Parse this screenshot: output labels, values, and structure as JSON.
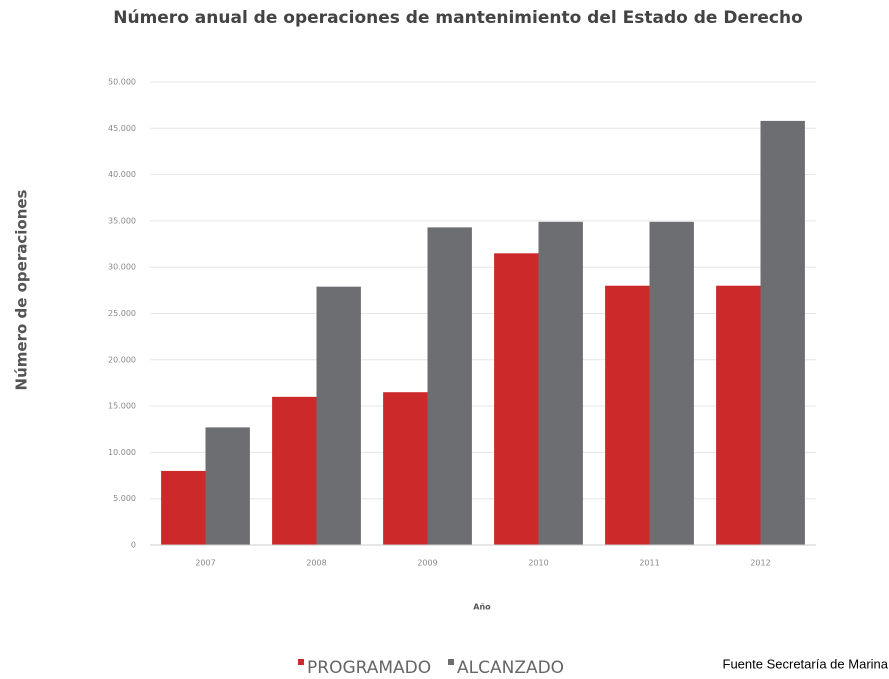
{
  "chart_data": {
    "type": "bar",
    "title": "Número anual de operaciones de mantenimiento del Estado de Derecho",
    "y_label": "Número de operaciones",
    "x_label": "Año",
    "source": "Fuente Secretaría de Marina",
    "categories": [
      "2007",
      "2008",
      "2009",
      "2010",
      "2011",
      "2012"
    ],
    "series": [
      {
        "name": "PROGRAMADO",
        "color": "#cc2a2a",
        "values": [
          8000,
          16000,
          16500,
          31500,
          28000,
          28000
        ]
      },
      {
        "name": "ALCANZADO",
        "color": "#6d6e72",
        "values": [
          12700,
          27900,
          34300,
          34900,
          34900,
          45800
        ]
      }
    ],
    "ylim": [
      0,
      50000
    ],
    "yticks": [
      0,
      {
        "value": 5000,
        "label": "5.000"
      },
      {
        "value": 10000,
        "label": "10.000"
      },
      {
        "value": 15000,
        "label": "15.000"
      },
      {
        "value": 20000,
        "label": "20.000"
      },
      {
        "value": 25000,
        "label": "25.000"
      },
      {
        "value": 30000,
        "label": "30.000"
      },
      {
        "value": 35000,
        "label": "35.000"
      },
      {
        "value": 40000,
        "label": "40.000"
      },
      {
        "value": 45000,
        "label": "45.000"
      },
      {
        "value": 50000,
        "label": "50.000"
      }
    ],
    "grid": true,
    "legend": "bottom"
  }
}
